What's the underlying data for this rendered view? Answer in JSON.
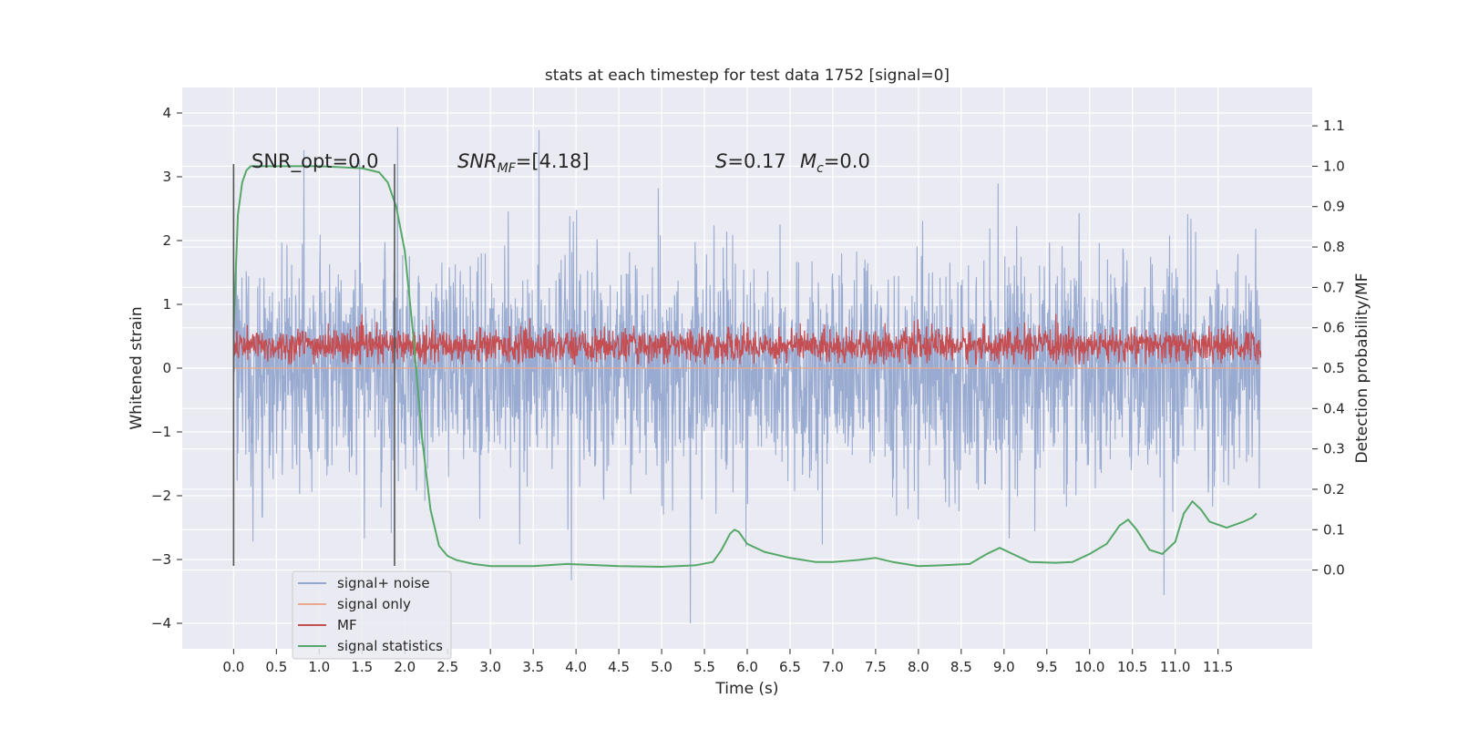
{
  "chart_data": {
    "type": "line",
    "title": "stats at each timestep for test data 1752 [signal=0]",
    "xlabel": "Time (s)",
    "ylabel": "Whitened strain",
    "ylabel_right": "Detection probability/MF",
    "xlim": [
      -0.6,
      12.6
    ],
    "ylim": [
      -4.4,
      4.4
    ],
    "ylim_right": [
      -0.195,
      1.195
    ],
    "x_ticks": [
      "0.0",
      "0.5",
      "1.0",
      "1.5",
      "2.0",
      "2.5",
      "3.0",
      "3.5",
      "4.0",
      "4.5",
      "5.0",
      "5.5",
      "6.0",
      "6.5",
      "7.0",
      "7.5",
      "8.0",
      "8.5",
      "9.0",
      "9.5",
      "10.0",
      "10.5",
      "11.0",
      "11.5"
    ],
    "y_ticks_left": [
      "−4",
      "−3",
      "−2",
      "−1",
      "0",
      "1",
      "2",
      "3",
      "4"
    ],
    "y_ticks_right": [
      "0.0",
      "0.1",
      "0.2",
      "0.3",
      "0.4",
      "0.5",
      "0.6",
      "0.7",
      "0.8",
      "0.9",
      "1.0",
      "1.1"
    ],
    "grid": true,
    "legend_position": "lower-left",
    "annotations": {
      "snr_opt": "SNR_opt=0.0",
      "snr_mf_main": "SNR",
      "snr_mf_sub": "MF",
      "snr_mf_rest": "=[4.18]",
      "s_main": "S",
      "s_rest": "=0.17",
      "mc_main": "M",
      "mc_sub": "c",
      "mc_rest": "=0.0"
    },
    "vertical_lines_x": [
      0.0,
      1.88
    ],
    "series": [
      {
        "name": "signal+ noise",
        "color": "#95a8cf",
        "axis": "left",
        "x_range": [
          0.0,
          12.0
        ],
        "typical_range": [
          -1.3,
          1.4
        ],
        "extreme_min": -4.0,
        "extreme_max": 4.1
      },
      {
        "name": "signal only",
        "color": "#eaa88c",
        "axis": "left",
        "values": "flat zero"
      },
      {
        "name": "MF",
        "color": "#c44e52",
        "axis": "left",
        "x_range": [
          0.0,
          12.0
        ],
        "typical_range": [
          0.1,
          0.65
        ],
        "extreme_max": 0.9
      },
      {
        "name": "signal statistics",
        "color": "#55a868",
        "axis": "right",
        "x": [
          0.0,
          0.05,
          0.1,
          0.15,
          0.2,
          0.5,
          1.0,
          1.5,
          1.7,
          1.8,
          1.9,
          2.0,
          2.1,
          2.2,
          2.3,
          2.4,
          2.5,
          2.6,
          2.8,
          3.0,
          3.5,
          3.9,
          4.5,
          5.0,
          5.4,
          5.6,
          5.7,
          5.8,
          5.85,
          5.9,
          6.0,
          6.2,
          6.5,
          6.8,
          7.0,
          7.3,
          7.5,
          7.7,
          8.0,
          8.3,
          8.6,
          8.8,
          8.95,
          9.1,
          9.3,
          9.6,
          9.8,
          10.0,
          10.2,
          10.35,
          10.45,
          10.55,
          10.7,
          10.85,
          11.0,
          11.1,
          11.2,
          11.3,
          11.4,
          11.6,
          11.8,
          11.9,
          11.95
        ],
        "values": [
          0.6,
          0.88,
          0.96,
          0.99,
          1.0,
          1.0,
          1.0,
          0.995,
          0.985,
          0.96,
          0.9,
          0.79,
          0.58,
          0.33,
          0.15,
          0.06,
          0.035,
          0.025,
          0.015,
          0.01,
          0.01,
          0.015,
          0.01,
          0.008,
          0.012,
          0.02,
          0.05,
          0.09,
          0.1,
          0.095,
          0.065,
          0.045,
          0.03,
          0.02,
          0.02,
          0.025,
          0.03,
          0.02,
          0.01,
          0.012,
          0.015,
          0.04,
          0.055,
          0.04,
          0.02,
          0.018,
          0.02,
          0.04,
          0.065,
          0.11,
          0.125,
          0.1,
          0.05,
          0.04,
          0.07,
          0.14,
          0.17,
          0.15,
          0.12,
          0.105,
          0.12,
          0.13,
          0.14
        ]
      }
    ]
  }
}
